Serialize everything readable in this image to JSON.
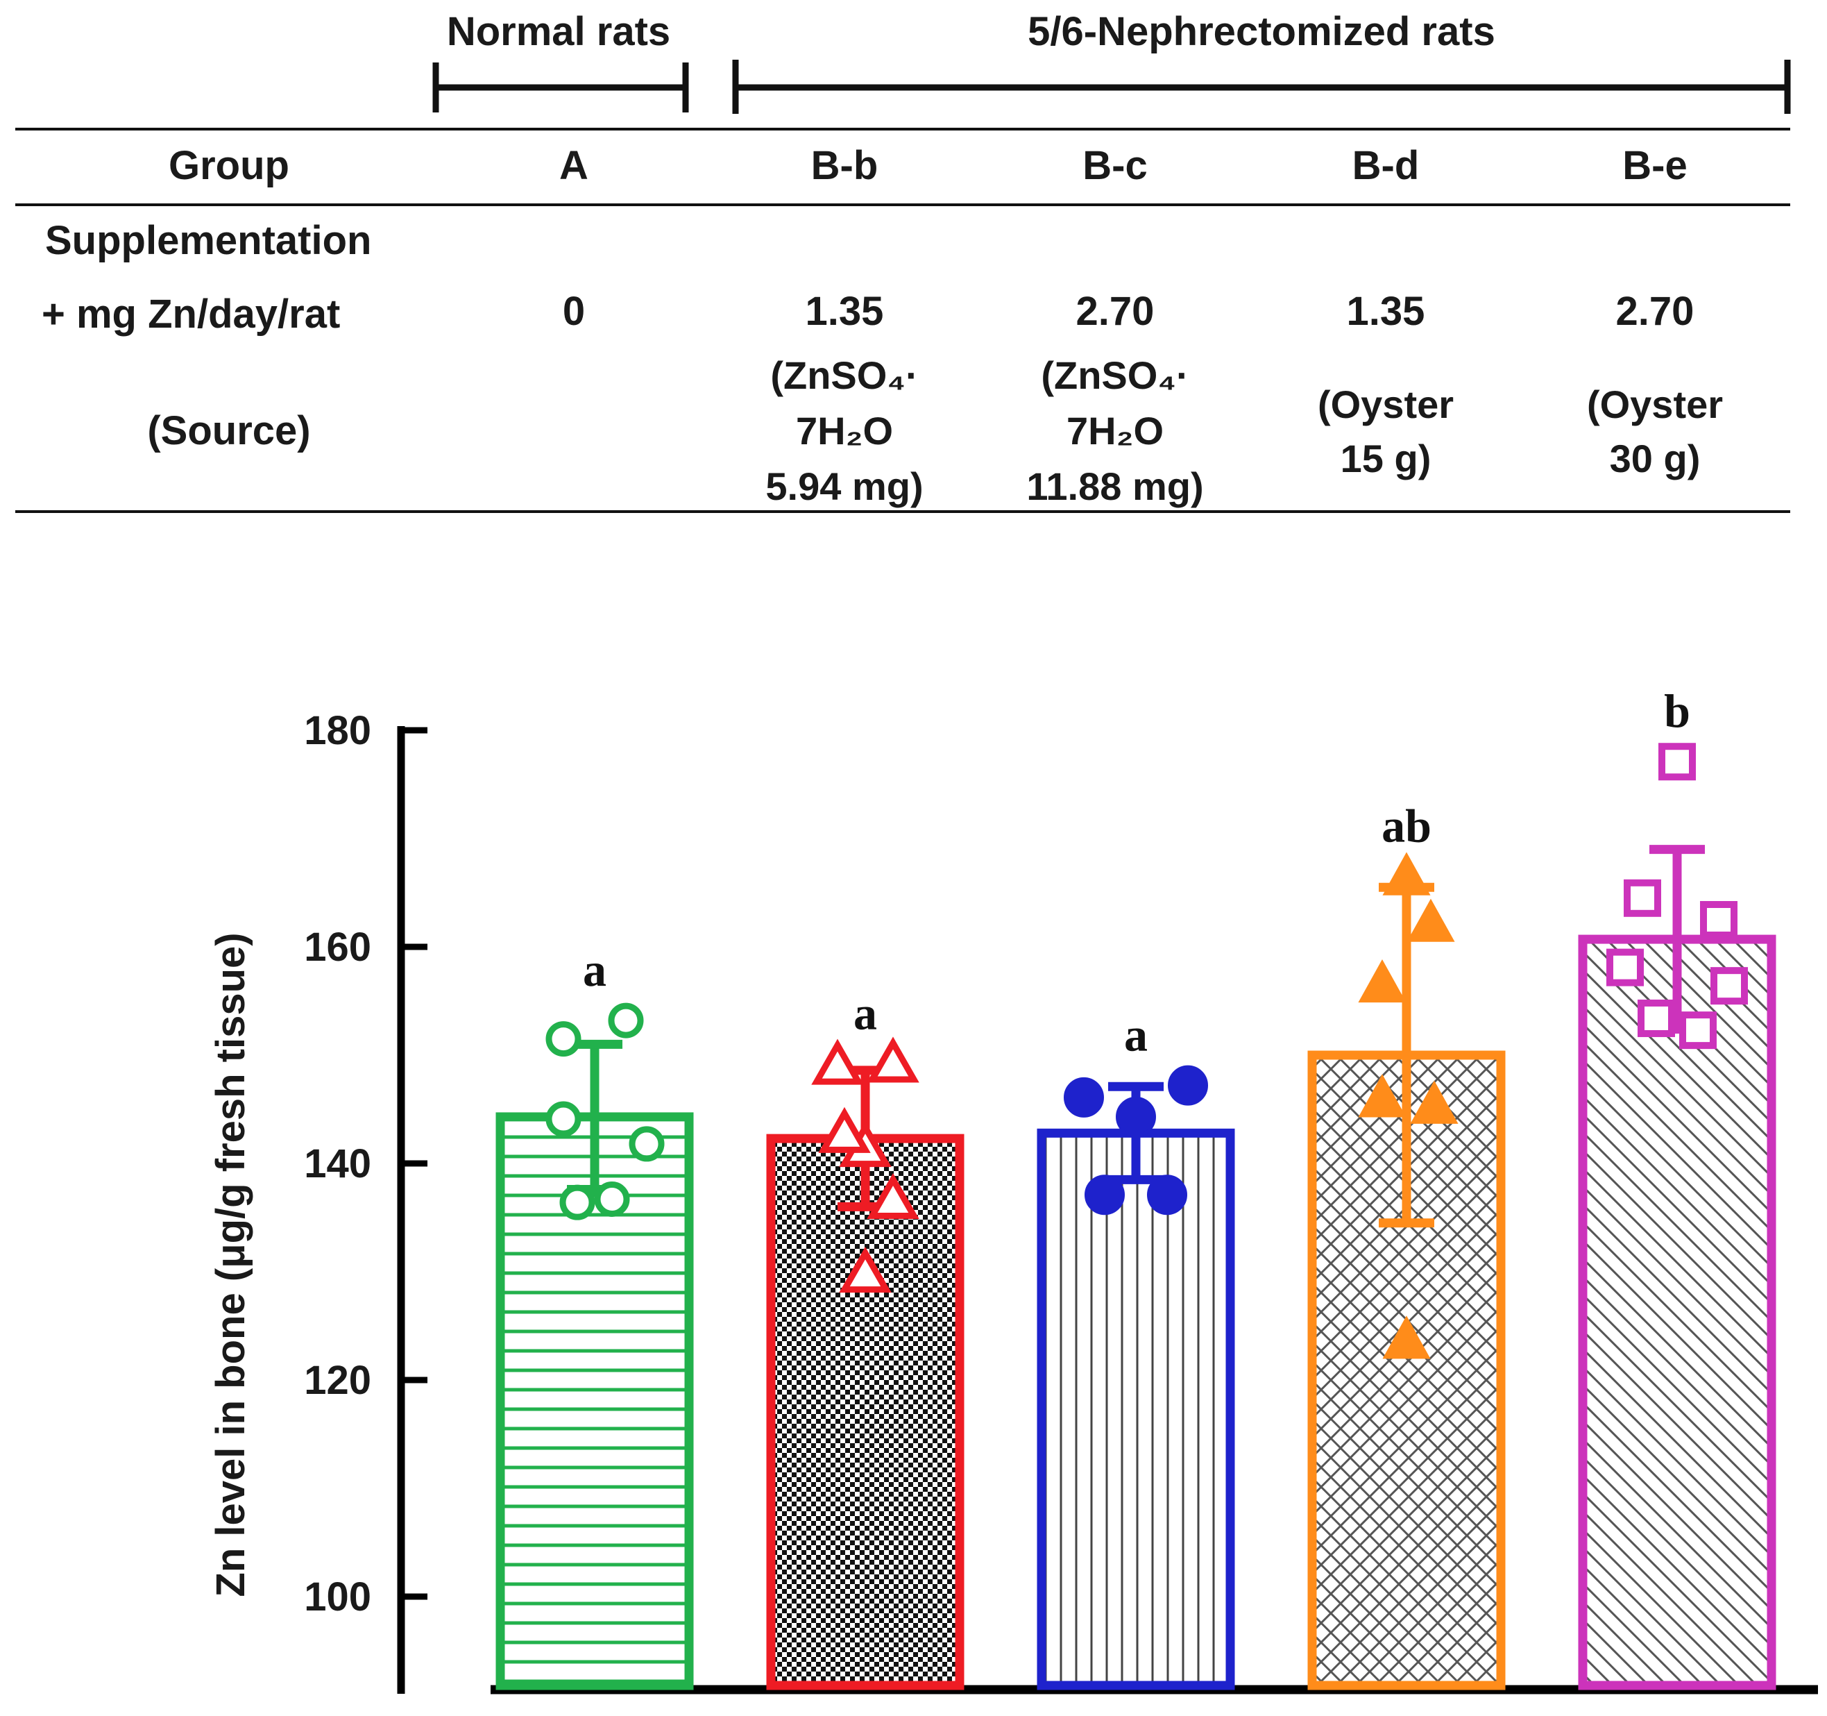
{
  "header": {
    "normal_label": "Normal rats",
    "nephrectomized_label": "5/6-Nephrectomized rats"
  },
  "table": {
    "row_labels": {
      "group": "Group",
      "supplementation": "Supplementation",
      "dose": "+ mg Zn/day/rat",
      "source": "(Source)"
    },
    "columns": [
      {
        "group": "A",
        "dose": "0",
        "source_lines": []
      },
      {
        "group": "B-b",
        "dose": "1.35",
        "source_lines": [
          "(ZnSO₄·",
          "7H₂O",
          "5.94 mg)"
        ]
      },
      {
        "group": "B-c",
        "dose": "2.70",
        "source_lines": [
          "(ZnSO₄·",
          "7H₂O",
          "11.88 mg)"
        ]
      },
      {
        "group": "B-d",
        "dose": "1.35",
        "source_lines": [
          "(Oyster",
          "15 g)"
        ]
      },
      {
        "group": "B-e",
        "dose": "2.70",
        "source_lines": [
          "(Oyster",
          "30 g)"
        ]
      }
    ]
  },
  "chart_data": {
    "type": "bar",
    "ylabel": "Zn level in bone (μg/g fresh tissue)",
    "xlabel": "",
    "ylim": [
      91,
      180
    ],
    "yticks": [
      100,
      120,
      140,
      160,
      180
    ],
    "categories": [
      "A",
      "B-b",
      "B-c",
      "B-d",
      "B-e"
    ],
    "values": [
      144.3,
      142.3,
      142.8,
      150.0,
      160.7
    ],
    "errors": [
      6.7,
      6.3,
      4.3,
      15.5,
      8.3
    ],
    "significance": [
      "a",
      "a",
      "a",
      "ab",
      "b"
    ],
    "colors": [
      "#22b14c",
      "#ee1c24",
      "#1e22cc",
      "#ff8c1a",
      "#cc33bb"
    ],
    "marker_shapes": [
      "circle",
      "triangle",
      "filled-circle",
      "filled-triangle",
      "square"
    ],
    "points": [
      [
        153.2,
        151.5,
        144.1,
        141.8,
        136.4,
        136.7
      ],
      [
        149.0,
        149.2,
        141.4,
        136.6,
        129.8,
        142.7
      ],
      [
        146.1,
        147.2,
        144.3,
        137.1,
        137.1
      ],
      [
        166.5,
        162.2,
        156.6,
        146.0,
        145.4,
        123.7
      ],
      [
        177.1,
        164.5,
        162.5,
        158.1,
        156.4,
        153.4,
        152.3
      ]
    ]
  }
}
